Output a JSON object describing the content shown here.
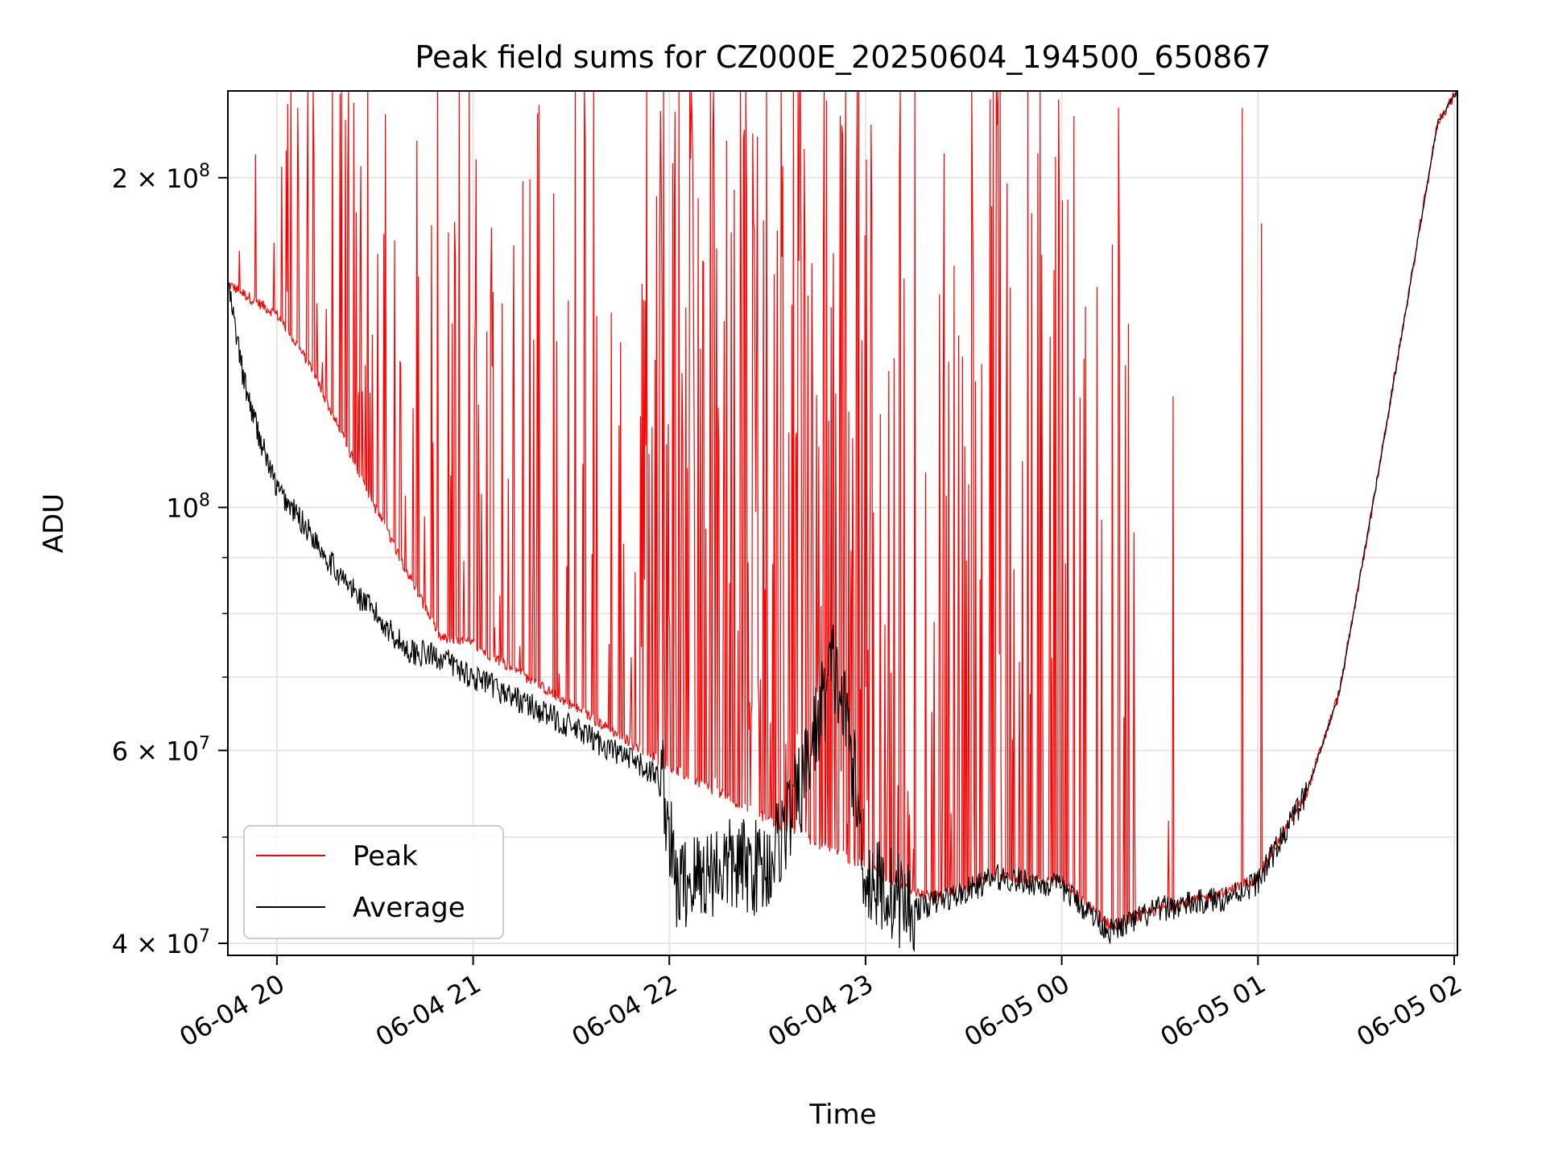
{
  "chart_data": {
    "type": "line",
    "title": "Peak field sums for CZ000E_20250604_194500_650867",
    "xlabel": "Time",
    "ylabel": "ADU",
    "y_scale": "log",
    "ylim": [
      39000000,
      240000000
    ],
    "xlim": [
      "2025-06-04 19:45",
      "2025-06-05 02:01"
    ],
    "grid": true,
    "legend_position": "lower-left",
    "x_ticks": [
      {
        "t": "2025-06-04 20:00",
        "label": "06-04 20"
      },
      {
        "t": "2025-06-04 21:00",
        "label": "06-04 21"
      },
      {
        "t": "2025-06-04 22:00",
        "label": "06-04 22"
      },
      {
        "t": "2025-06-04 23:00",
        "label": "06-04 23"
      },
      {
        "t": "2025-06-05 00:00",
        "label": "06-05 00"
      },
      {
        "t": "2025-06-05 01:00",
        "label": "06-05 01"
      },
      {
        "t": "2025-06-05 02:00",
        "label": "06-05 02"
      }
    ],
    "y_ticks": [
      {
        "value": 40000000,
        "mantissa": "4",
        "exponent": "7"
      },
      {
        "value": 60000000,
        "mantissa": "6",
        "exponent": "7"
      },
      {
        "value": 100000000,
        "mantissa": "",
        "exponent": "8"
      },
      {
        "value": 200000000,
        "mantissa": "2",
        "exponent": "8"
      }
    ],
    "series": [
      {
        "name": "Peak",
        "color": "#ff0000",
        "style": "spiky",
        "baseline_points": [
          [
            "2025-06-04 19:45",
            160000000
          ],
          [
            "2025-06-04 20:00",
            150000000
          ],
          [
            "2025-06-04 20:10",
            135000000
          ],
          [
            "2025-06-04 20:30",
            100000000
          ],
          [
            "2025-06-04 20:50",
            76000000
          ],
          [
            "2025-06-04 21:00",
            75000000
          ],
          [
            "2025-06-04 21:30",
            66000000
          ],
          [
            "2025-06-04 22:00",
            58000000
          ],
          [
            "2025-06-04 22:30",
            52000000
          ],
          [
            "2025-06-04 23:00",
            47000000
          ],
          [
            "2025-06-04 23:20",
            44000000
          ],
          [
            "2025-06-04 23:40",
            46000000
          ],
          [
            "2025-06-05 00:00",
            45500000
          ],
          [
            "2025-06-05 00:15",
            41500000
          ],
          [
            "2025-06-05 00:30",
            43000000
          ],
          [
            "2025-06-05 00:50",
            44500000
          ],
          [
            "2025-06-05 01:00",
            46000000
          ],
          [
            "2025-06-05 01:15",
            55000000
          ],
          [
            "2025-06-05 01:25",
            68000000
          ],
          [
            "2025-06-05 01:35",
            100000000
          ],
          [
            "2025-06-05 01:45",
            150000000
          ],
          [
            "2025-06-05 01:55",
            225000000
          ],
          [
            "2025-06-05 02:01",
            240000000
          ]
        ]
      },
      {
        "name": "Average",
        "color": "#000000",
        "style": "noisy",
        "points": [
          [
            "2025-06-04 19:45",
            160000000
          ],
          [
            "2025-06-04 19:50",
            130000000
          ],
          [
            "2025-06-04 19:55",
            115000000
          ],
          [
            "2025-06-04 20:00",
            104000000
          ],
          [
            "2025-06-04 20:10",
            95000000
          ],
          [
            "2025-06-04 20:20",
            86000000
          ],
          [
            "2025-06-04 20:30",
            80000000
          ],
          [
            "2025-06-04 20:40",
            74000000
          ],
          [
            "2025-06-04 20:50",
            73000000
          ],
          [
            "2025-06-04 21:00",
            70000000
          ],
          [
            "2025-06-04 21:15",
            66500000
          ],
          [
            "2025-06-04 21:30",
            63000000
          ],
          [
            "2025-06-04 21:45",
            59500000
          ],
          [
            "2025-06-04 21:58",
            56500000
          ],
          [
            "2025-06-04 22:02",
            45000000
          ],
          [
            "2025-06-04 22:15",
            47000000
          ],
          [
            "2025-06-04 22:30",
            47000000
          ],
          [
            "2025-06-04 22:40",
            55000000
          ],
          [
            "2025-06-04 22:50",
            72000000
          ],
          [
            "2025-06-04 22:55",
            62000000
          ],
          [
            "2025-06-04 23:00",
            46000000
          ],
          [
            "2025-06-04 23:15",
            43000000
          ],
          [
            "2025-06-04 23:30",
            44500000
          ],
          [
            "2025-06-04 23:40",
            46000000
          ],
          [
            "2025-06-05 00:00",
            45000000
          ],
          [
            "2025-06-05 00:15",
            41000000
          ],
          [
            "2025-06-05 00:30",
            43000000
          ],
          [
            "2025-06-05 00:50",
            44000000
          ],
          [
            "2025-06-05 01:00",
            45500000
          ],
          [
            "2025-06-05 01:15",
            55000000
          ],
          [
            "2025-06-05 01:25",
            68000000
          ],
          [
            "2025-06-05 01:35",
            100000000
          ],
          [
            "2025-06-05 01:45",
            150000000
          ],
          [
            "2025-06-05 01:55",
            225000000
          ],
          [
            "2025-06-05 02:01",
            240000000
          ]
        ]
      }
    ]
  }
}
